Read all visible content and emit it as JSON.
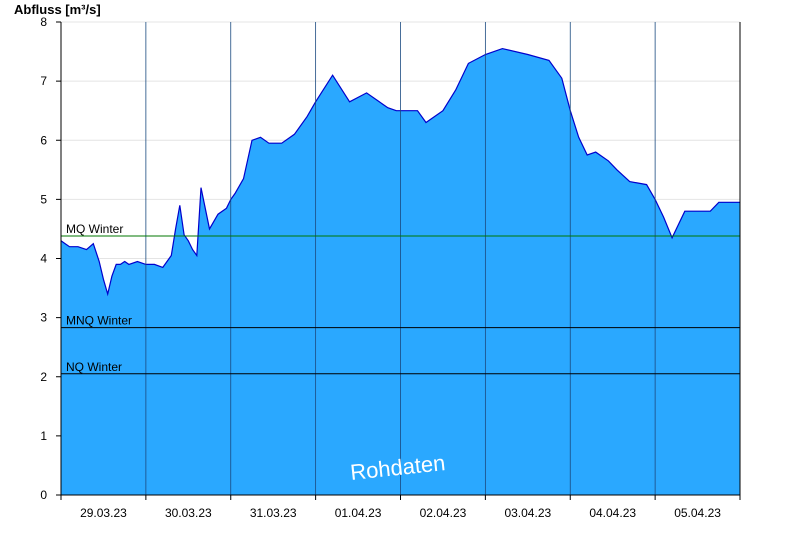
{
  "chart_data": {
    "type": "area",
    "title": "",
    "ylabel": "Abfluss [m³/s]",
    "xlabel": "",
    "ylim": [
      0,
      8
    ],
    "yticks": [
      0,
      1,
      2,
      3,
      4,
      5,
      6,
      7,
      8
    ],
    "x_tick_labels": [
      "29.03.23",
      "30.03.23",
      "31.03.23",
      "01.04.23",
      "02.04.23",
      "03.04.23",
      "04.04.23",
      "05.04.23"
    ],
    "x_range_days": [
      28.0,
      36.0
    ],
    "grid": "vertical lines at midnight, horizontal light grid",
    "watermark": "Rohdaten",
    "colors": {
      "fill": "#2aa8ff",
      "line": "#0000cc",
      "mq": "#007700",
      "ref": "#000000"
    },
    "reference_lines": [
      {
        "label": "MQ Winter",
        "value": 4.38,
        "color": "#007700"
      },
      {
        "label": "MNQ Winter",
        "value": 2.83,
        "color": "#000000"
      },
      {
        "label": "NQ Winter",
        "value": 2.05,
        "color": "#000000"
      }
    ],
    "series": [
      {
        "x": [
          28.0,
          28.05,
          28.1,
          28.2,
          28.3,
          28.38,
          28.45,
          28.5,
          28.55,
          28.6,
          28.65,
          28.7,
          28.75,
          28.8,
          28.9,
          29.0,
          29.1,
          29.2,
          29.3,
          29.35,
          29.4,
          29.45,
          29.5,
          29.55,
          29.6,
          29.65,
          29.75,
          29.85,
          29.95,
          30.0,
          30.05,
          30.15,
          30.25,
          30.35,
          30.45,
          30.5,
          30.6,
          30.75,
          30.9,
          31.0,
          31.2,
          31.4,
          31.6,
          31.75,
          31.85,
          31.95,
          32.05,
          32.1,
          32.2,
          32.3,
          32.5,
          32.65,
          32.8,
          33.0,
          33.2,
          33.5,
          33.75,
          33.9,
          34.0,
          34.1,
          34.2,
          34.3,
          34.45,
          34.55,
          34.7,
          34.9,
          35.0,
          35.1,
          35.2,
          35.35,
          35.45,
          35.55,
          35.65,
          35.75,
          35.85,
          35.95,
          36.0
        ],
        "y": [
          4.3,
          4.25,
          4.2,
          4.2,
          4.15,
          4.25,
          3.95,
          3.65,
          3.4,
          3.7,
          3.9,
          3.9,
          3.95,
          3.9,
          3.95,
          3.9,
          3.9,
          3.85,
          4.05,
          4.5,
          4.9,
          4.4,
          4.3,
          4.15,
          4.05,
          5.2,
          4.5,
          4.75,
          4.85,
          5.0,
          5.1,
          5.35,
          6.0,
          6.05,
          5.95,
          5.95,
          5.95,
          6.1,
          6.4,
          6.65,
          7.1,
          6.65,
          6.8,
          6.65,
          6.55,
          6.5,
          6.5,
          6.5,
          6.5,
          6.3,
          6.5,
          6.85,
          7.3,
          7.45,
          7.55,
          7.45,
          7.35,
          7.05,
          6.5,
          6.05,
          5.75,
          5.8,
          5.65,
          5.5,
          5.3,
          5.25,
          5.0,
          4.7,
          4.35,
          4.8,
          4.8,
          4.8,
          4.8,
          4.95,
          4.95,
          4.95,
          4.95
        ]
      }
    ]
  }
}
